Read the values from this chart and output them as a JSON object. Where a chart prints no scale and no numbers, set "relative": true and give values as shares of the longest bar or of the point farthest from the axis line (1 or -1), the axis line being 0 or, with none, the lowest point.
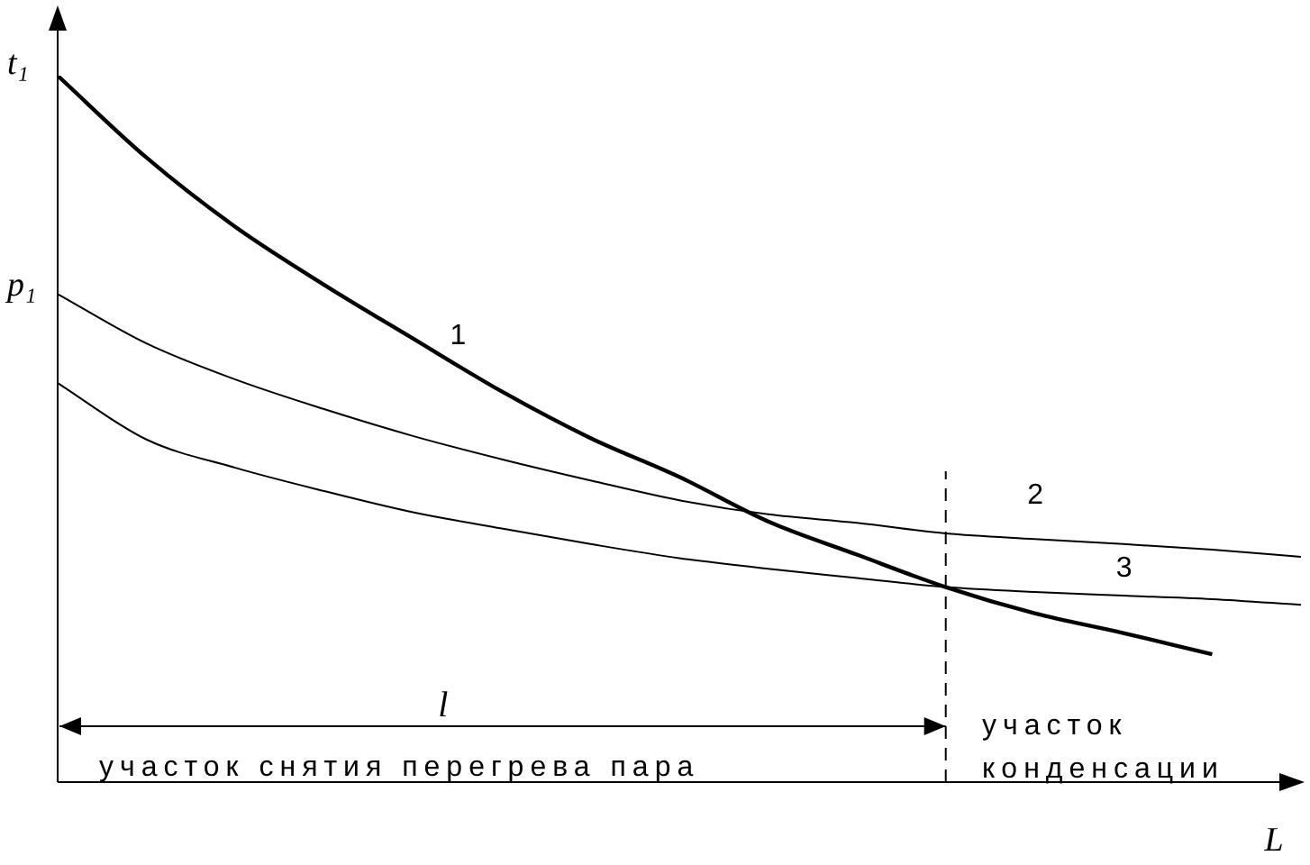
{
  "chart_data": {
    "type": "line",
    "relative": true,
    "xlabel": "L",
    "categories": [
      null,
      null,
      null,
      null,
      null,
      null,
      null,
      null,
      null,
      null,
      null,
      null,
      null,
      null,
      null
    ],
    "series": [
      {
        "name": "1",
        "color": "#000000",
        "values": [
          1,
          0.884,
          0.786,
          0.704,
          0.628,
          0.553,
          0.487,
          0.432,
          0.369,
          0.322,
          0.276,
          0.239,
          0.211,
          0.181,
          null
        ]
      },
      {
        "name": "2",
        "color": "#000000",
        "values": [
          0.691,
          0.621,
          0.57,
          0.528,
          0.49,
          0.457,
          0.427,
          0.399,
          0.379,
          0.367,
          0.352,
          0.344,
          0.337,
          0.329,
          0.319
        ]
      },
      {
        "name": "3",
        "color": "#000000",
        "values": [
          0.565,
          0.485,
          0.445,
          0.412,
          0.382,
          0.359,
          0.337,
          0.317,
          0.302,
          0.289,
          0.276,
          0.269,
          0.264,
          0.259,
          0.251
        ]
      }
    ],
    "annotations": [
      "t₁",
      "p₁",
      "l",
      "участок снятия перегрева пара",
      "участок конденсации"
    ]
  }
}
